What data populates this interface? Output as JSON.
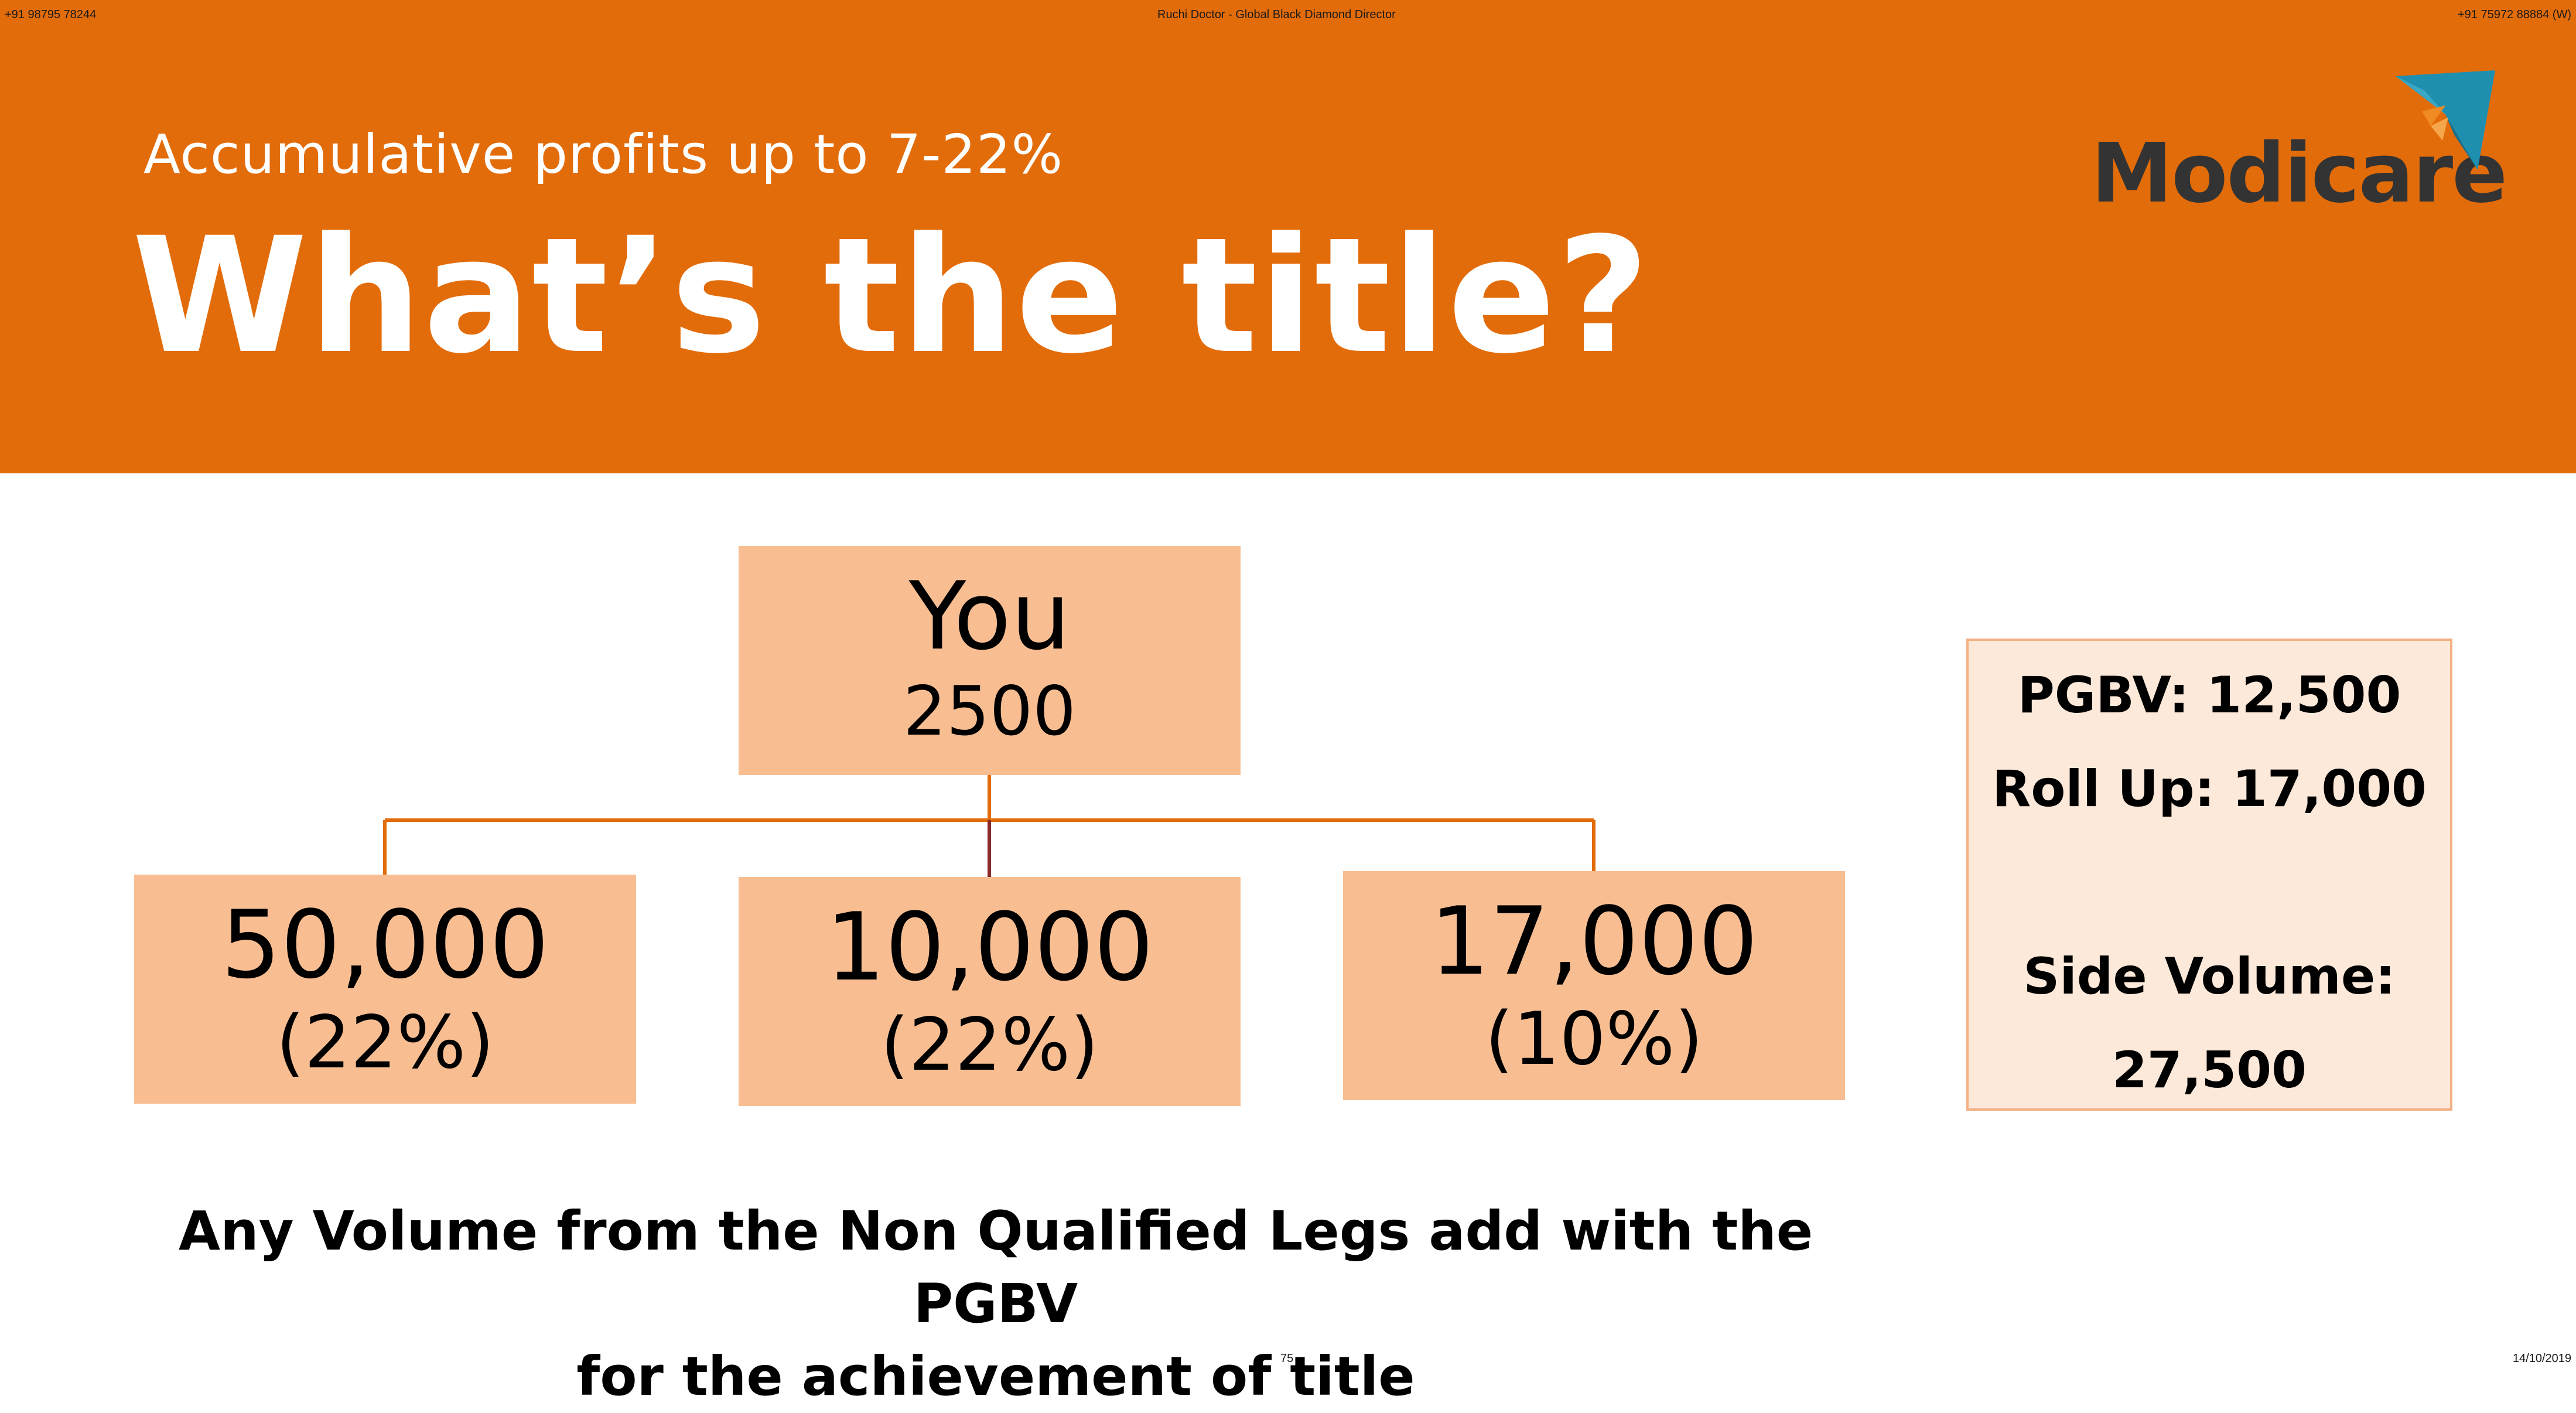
{
  "header": {
    "meta_left": "+91 98795 78244",
    "meta_center": "Ruchi Doctor - Global Black Diamond Director",
    "meta_right": "+91 75972 88884 (W)",
    "subtitle": "Accumulative profits up to 7-22%",
    "title": "What’s the title?",
    "logo_text": "Modicare",
    "logo_icon": "modicare-kite-icon"
  },
  "colors": {
    "header_band": "#e36c0a",
    "node_fill": "#f8be92",
    "connector": "#e36c0a",
    "side_box_fill": "#fde9d9",
    "side_box_border": "#f4b183"
  },
  "tree": {
    "root": {
      "name": "You",
      "value": "2500"
    },
    "children": [
      {
        "value": "50,000",
        "percent": "(22%)"
      },
      {
        "value": "10,000",
        "percent": "(22%)"
      },
      {
        "value": "17,000",
        "percent": "(10%)"
      }
    ]
  },
  "side_panel": {
    "pgbv": "PGBV: 12,500",
    "roll_up": "Roll Up: 17,000",
    "side_volume_label": "Side Volume:",
    "side_volume_value": "27,500"
  },
  "footer": {
    "note_line1": "Any Volume from the Non Qualified Legs add with the PGBV",
    "note_line2": "for the achievement of title",
    "page_number": "75",
    "date": "14/10/2019"
  }
}
